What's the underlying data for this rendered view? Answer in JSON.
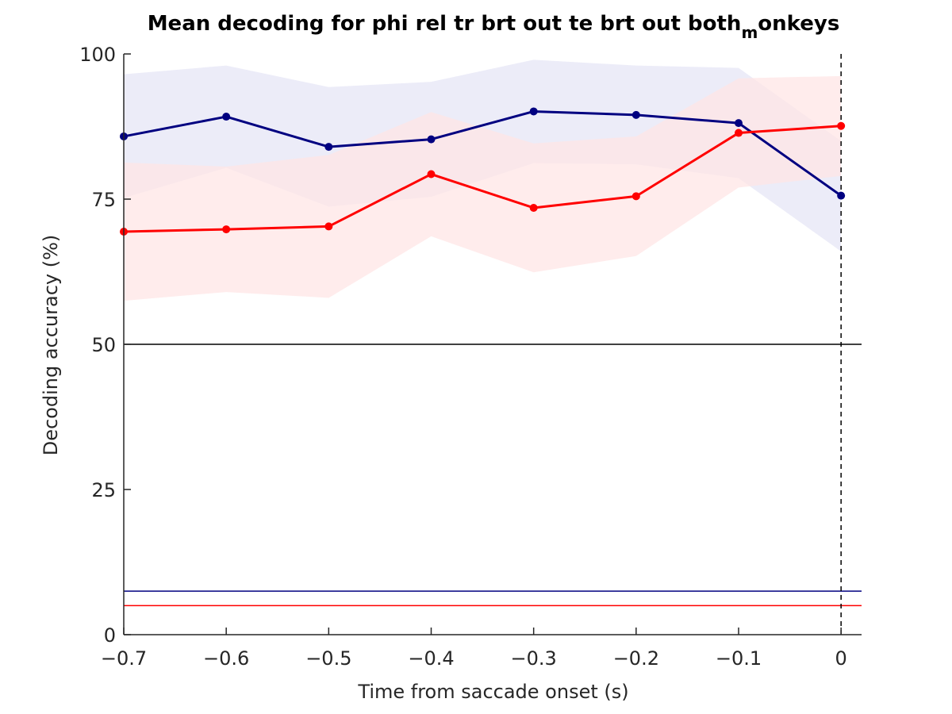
{
  "chart_data": {
    "type": "line",
    "title": "Mean decoding for phi rel tr brt out te brt out  both",
    "title_subscript": "m",
    "title_suffix": "onkeys",
    "xlabel": "Time from saccade onset (s)",
    "ylabel": "Decoding accuracy (%)",
    "xlim": [
      -0.7,
      0.02
    ],
    "ylim": [
      0,
      100
    ],
    "xticks": [
      -0.7,
      -0.6,
      -0.5,
      -0.4,
      -0.3,
      -0.2,
      -0.1,
      0
    ],
    "xtick_labels": [
      "−0.7",
      "−0.6",
      "−0.5",
      "−0.4",
      "−0.3",
      "−0.2",
      "−0.1",
      "0"
    ],
    "yticks": [
      0,
      25,
      50,
      75,
      100
    ],
    "ytick_labels": [
      "0",
      "25",
      "50",
      "75",
      "100"
    ],
    "grid": false,
    "x": [
      -0.7,
      -0.6,
      -0.5,
      -0.4,
      -0.3,
      -0.2,
      -0.1,
      0
    ],
    "series": [
      {
        "color": "#000080",
        "band_color": "#e6e6f5",
        "values": [
          85.8,
          89.2,
          84.0,
          85.3,
          90.1,
          89.5,
          88.1,
          75.6
        ],
        "upper": [
          96.5,
          98.0,
          94.3,
          95.2,
          99.0,
          98.0,
          97.6,
          85.0
        ],
        "lower": [
          75.2,
          80.4,
          73.7,
          75.4,
          81.2,
          81.0,
          78.6,
          66.0
        ]
      },
      {
        "color": "#ff0000",
        "band_color": "#ffe5e5",
        "values": [
          69.4,
          69.8,
          70.3,
          79.3,
          73.5,
          75.5,
          86.4,
          87.6
        ],
        "upper": [
          81.3,
          80.6,
          82.6,
          90.0,
          84.6,
          85.8,
          95.8,
          96.2
        ],
        "lower": [
          57.5,
          59.0,
          58.0,
          68.6,
          62.4,
          65.2,
          77.0,
          79.0
        ]
      }
    ],
    "reference_lines": [
      {
        "y": 50,
        "color": "#000000"
      },
      {
        "y": 7.5,
        "color": "#000080"
      },
      {
        "y": 5,
        "color": "#ff0000"
      }
    ],
    "vertical_marker": {
      "x": 0,
      "color": "#000000",
      "style": "dashed"
    }
  }
}
